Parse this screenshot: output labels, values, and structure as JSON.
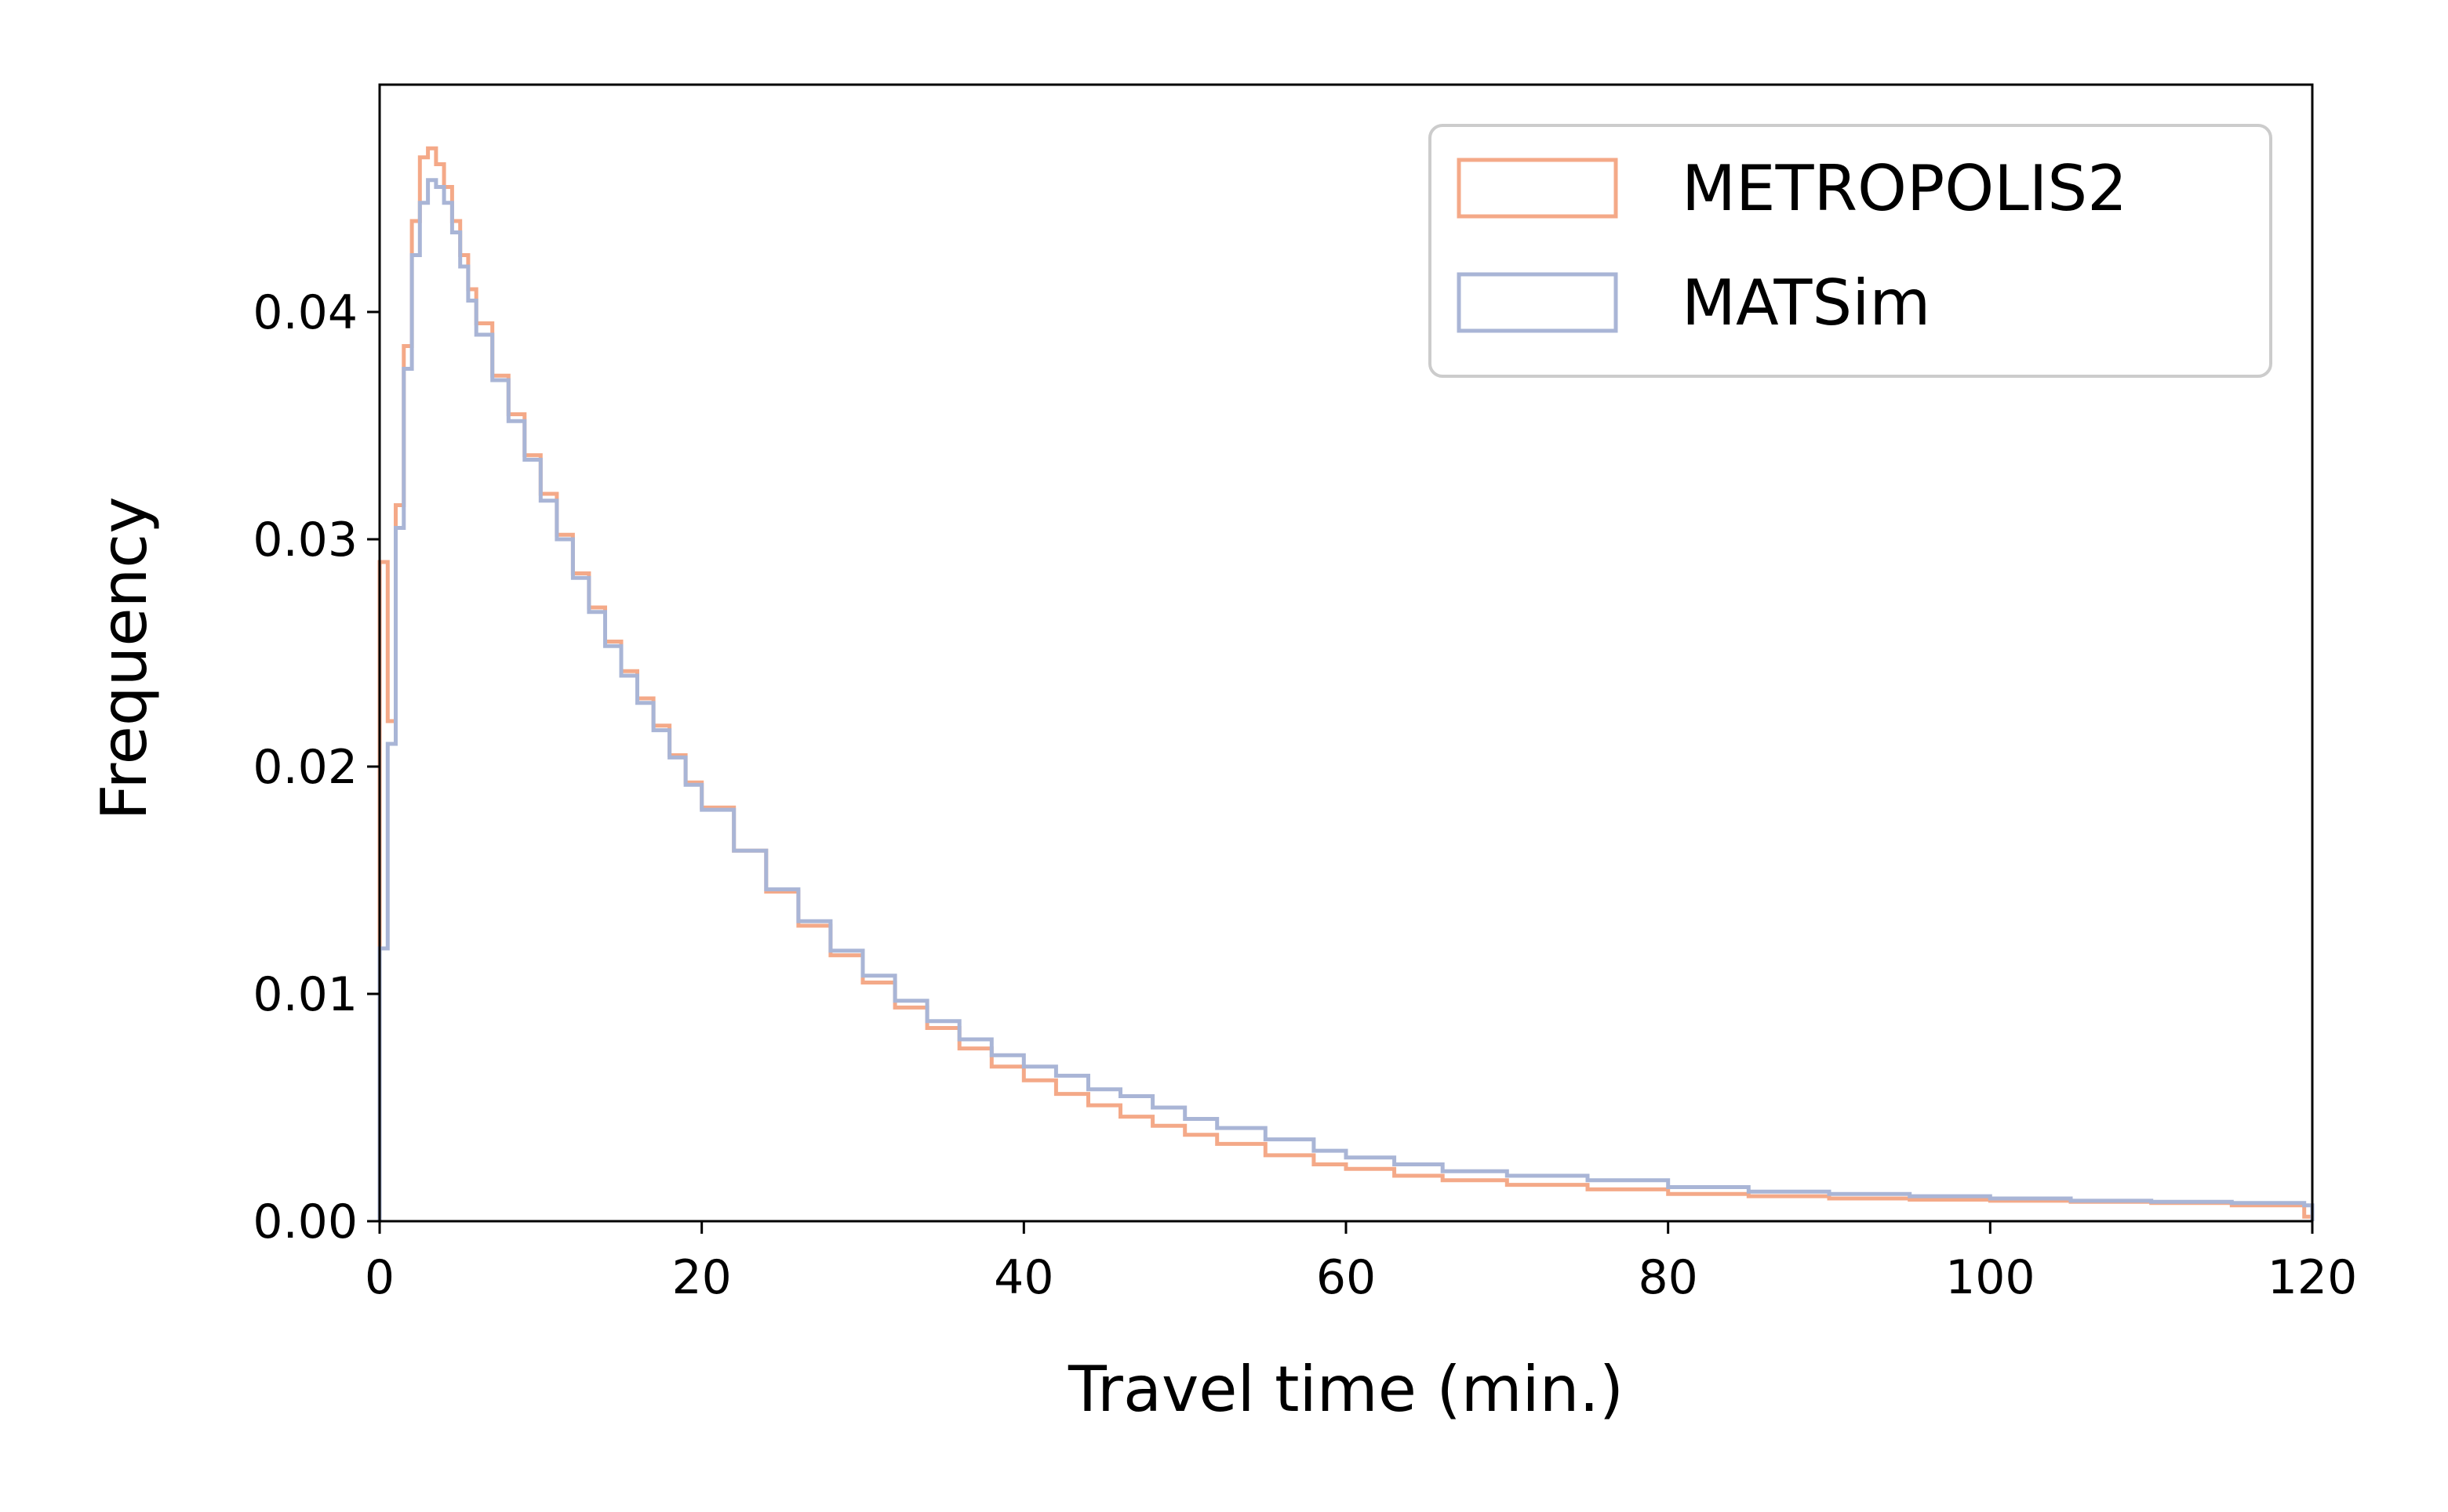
{
  "chart_data": {
    "type": "line",
    "subtype": "step-histogram",
    "title": "",
    "xlabel": "Travel time (min.)",
    "ylabel": "Frequency",
    "xlim": [
      0,
      120
    ],
    "ylim": [
      0,
      0.05
    ],
    "xticks": [
      0,
      20,
      40,
      60,
      80,
      100,
      120
    ],
    "xtick_labels": [
      "0",
      "20",
      "40",
      "60",
      "80",
      "100",
      "120"
    ],
    "yticks": [
      0,
      0.01,
      0.02,
      0.03,
      0.04
    ],
    "ytick_labels": [
      "0.00",
      "0.01",
      "0.02",
      "0.03",
      "0.04"
    ],
    "grid": false,
    "legend_position": "top-right",
    "series": [
      {
        "name": "METROPOLIS2",
        "color": "#f4a988",
        "x": [
          0,
          0.5,
          1,
          1.5,
          2,
          2.5,
          3,
          3.5,
          4,
          4.5,
          5,
          5.5,
          6,
          7,
          8,
          9,
          10,
          11,
          12,
          13,
          14,
          15,
          16,
          17,
          18,
          19,
          20,
          22,
          24,
          26,
          28,
          30,
          32,
          34,
          36,
          38,
          40,
          42,
          44,
          46,
          48,
          50,
          52,
          55,
          58,
          60,
          63,
          66,
          70,
          75,
          80,
          85,
          90,
          95,
          100,
          105,
          110,
          115,
          119.5,
          120
        ],
        "y": [
          0.029,
          0.022,
          0.0315,
          0.0385,
          0.044,
          0.0468,
          0.0472,
          0.0465,
          0.0455,
          0.044,
          0.0425,
          0.041,
          0.0395,
          0.0372,
          0.0355,
          0.0337,
          0.032,
          0.0302,
          0.0285,
          0.027,
          0.0255,
          0.0242,
          0.023,
          0.0218,
          0.0205,
          0.0193,
          0.0182,
          0.0163,
          0.0145,
          0.013,
          0.0117,
          0.0105,
          0.0094,
          0.0085,
          0.0076,
          0.0068,
          0.0062,
          0.0056,
          0.0051,
          0.0046,
          0.0042,
          0.0038,
          0.0034,
          0.0029,
          0.0025,
          0.0023,
          0.002,
          0.0018,
          0.0016,
          0.0014,
          0.0012,
          0.0011,
          0.001,
          0.00095,
          0.0009,
          0.00085,
          0.0008,
          0.0007,
          0.0002,
          0
        ]
      },
      {
        "name": "MATSim",
        "color": "#a9b5d6",
        "x": [
          0,
          0.5,
          1,
          1.5,
          2,
          2.5,
          3,
          3.5,
          4,
          4.5,
          5,
          5.5,
          6,
          7,
          8,
          9,
          10,
          11,
          12,
          13,
          14,
          15,
          16,
          17,
          18,
          19,
          20,
          22,
          24,
          26,
          28,
          30,
          32,
          34,
          36,
          38,
          40,
          42,
          44,
          46,
          48,
          50,
          52,
          55,
          58,
          60,
          63,
          66,
          70,
          75,
          80,
          85,
          90,
          95,
          100,
          105,
          110,
          115,
          119.5,
          120
        ],
        "y": [
          0.012,
          0.021,
          0.0305,
          0.0375,
          0.0425,
          0.0448,
          0.0458,
          0.0455,
          0.0448,
          0.0435,
          0.042,
          0.0405,
          0.039,
          0.037,
          0.0352,
          0.0335,
          0.0317,
          0.03,
          0.0283,
          0.0268,
          0.0253,
          0.024,
          0.0228,
          0.0216,
          0.0204,
          0.0192,
          0.0181,
          0.0163,
          0.0146,
          0.0132,
          0.0119,
          0.0108,
          0.0097,
          0.0088,
          0.008,
          0.0073,
          0.0068,
          0.0064,
          0.0058,
          0.0055,
          0.005,
          0.0045,
          0.0041,
          0.0036,
          0.0031,
          0.0028,
          0.0025,
          0.0022,
          0.002,
          0.0018,
          0.0015,
          0.0013,
          0.0012,
          0.0011,
          0.001,
          0.0009,
          0.00085,
          0.0008,
          0.0007,
          0
        ]
      }
    ]
  }
}
